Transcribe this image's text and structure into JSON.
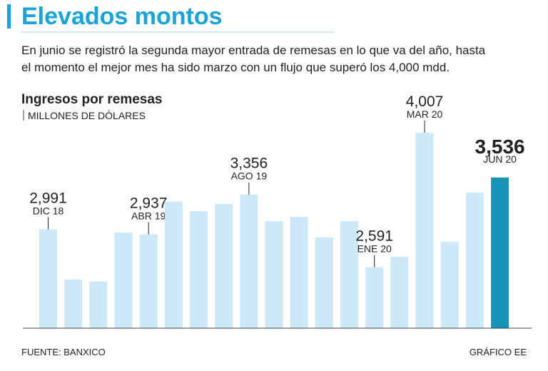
{
  "headline": "Elevados montos",
  "intro": [
    "En junio se registró la segunda mayor entrada de remesas en lo que va del año, hasta",
    "el momento el mejor mes ha sido marzo con un flujo que superó los 4,000 mdd."
  ],
  "source": "FUENTE: BANXICO",
  "credit": "GRÁFICO EE",
  "chart_data": {
    "type": "bar",
    "title": "Ingresos por remesas",
    "subtitle": "MILLONES DE DÓLARES",
    "categories": [
      "DIC 18",
      null,
      null,
      null,
      "ABR 19",
      null,
      null,
      null,
      "AGO 19",
      null,
      null,
      null,
      null,
      "ENE 20",
      null,
      "MAR 20",
      null,
      null,
      "JUN 20"
    ],
    "values": [
      2991,
      2463,
      2441,
      2958,
      2937,
      3280,
      3182,
      3257,
      3356,
      3078,
      3122,
      2905,
      3078,
      2591,
      2703,
      4007,
      2860,
      3377,
      3536
    ],
    "value_labels": [
      "2,991",
      null,
      null,
      null,
      "2,937",
      null,
      null,
      null,
      "3,356",
      null,
      null,
      null,
      null,
      "2,591",
      null,
      "4,007",
      null,
      null,
      "3,536"
    ],
    "colors": [
      "#cde9f8",
      "#cde9f8",
      "#cde9f8",
      "#cde9f8",
      "#cde9f8",
      "#cde9f8",
      "#cde9f8",
      "#cde9f8",
      "#cde9f8",
      "#cde9f8",
      "#cde9f8",
      "#cde9f8",
      "#cde9f8",
      "#cde9f8",
      "#cde9f8",
      "#cde9f8",
      "#cde9f8",
      "#cde9f8",
      "#1593b8"
    ],
    "ylim": [
      1950,
      4300
    ]
  }
}
